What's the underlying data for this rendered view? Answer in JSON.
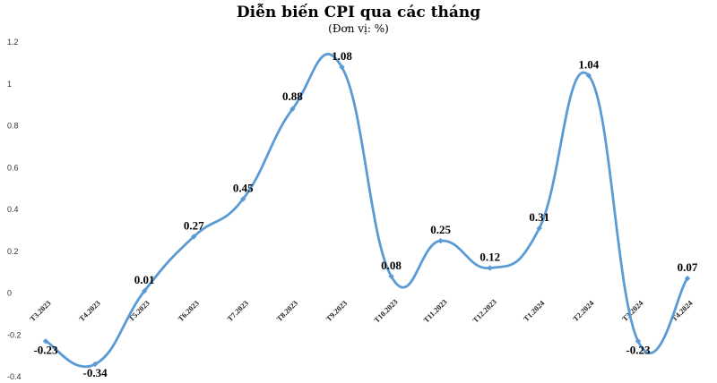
{
  "chart_data": {
    "type": "line",
    "title": "Diễn biến CPI qua các tháng",
    "subtitle": "(Đơn vị: %)",
    "xlabel": "",
    "ylabel": "",
    "categories": [
      "T3.2023",
      "T4.2023",
      "T5.2023",
      "T6.2023",
      "T7.2023",
      "T8.2023",
      "T9.2023",
      "T10.2023",
      "T11.2023",
      "T12.2023",
      "T1.2024",
      "T2.2024",
      "T3.2024",
      "T4.2024"
    ],
    "series": [
      {
        "values": [
          -0.23,
          -0.34,
          0.01,
          0.27,
          0.45,
          0.88,
          1.08,
          0.08,
          0.25,
          0.12,
          0.31,
          1.04,
          -0.23,
          0.07
        ]
      }
    ],
    "data_labels": [
      "-0.23",
      "-0.34",
      "0.01",
      "0.27",
      "0.45",
      "0.88",
      "1.08",
      "0.08",
      "0.25",
      "0.12",
      "0.31",
      "1.04",
      "-0.23",
      "0.07"
    ],
    "yticks": [
      "-0.4",
      "-0.2",
      "0",
      "0.2",
      "0.4",
      "0.6",
      "0.8",
      "1",
      "1.2"
    ],
    "ylim": [
      -0.4,
      1.2
    ],
    "grid": false,
    "legend": "none",
    "line_color": "#5B9BD5"
  }
}
